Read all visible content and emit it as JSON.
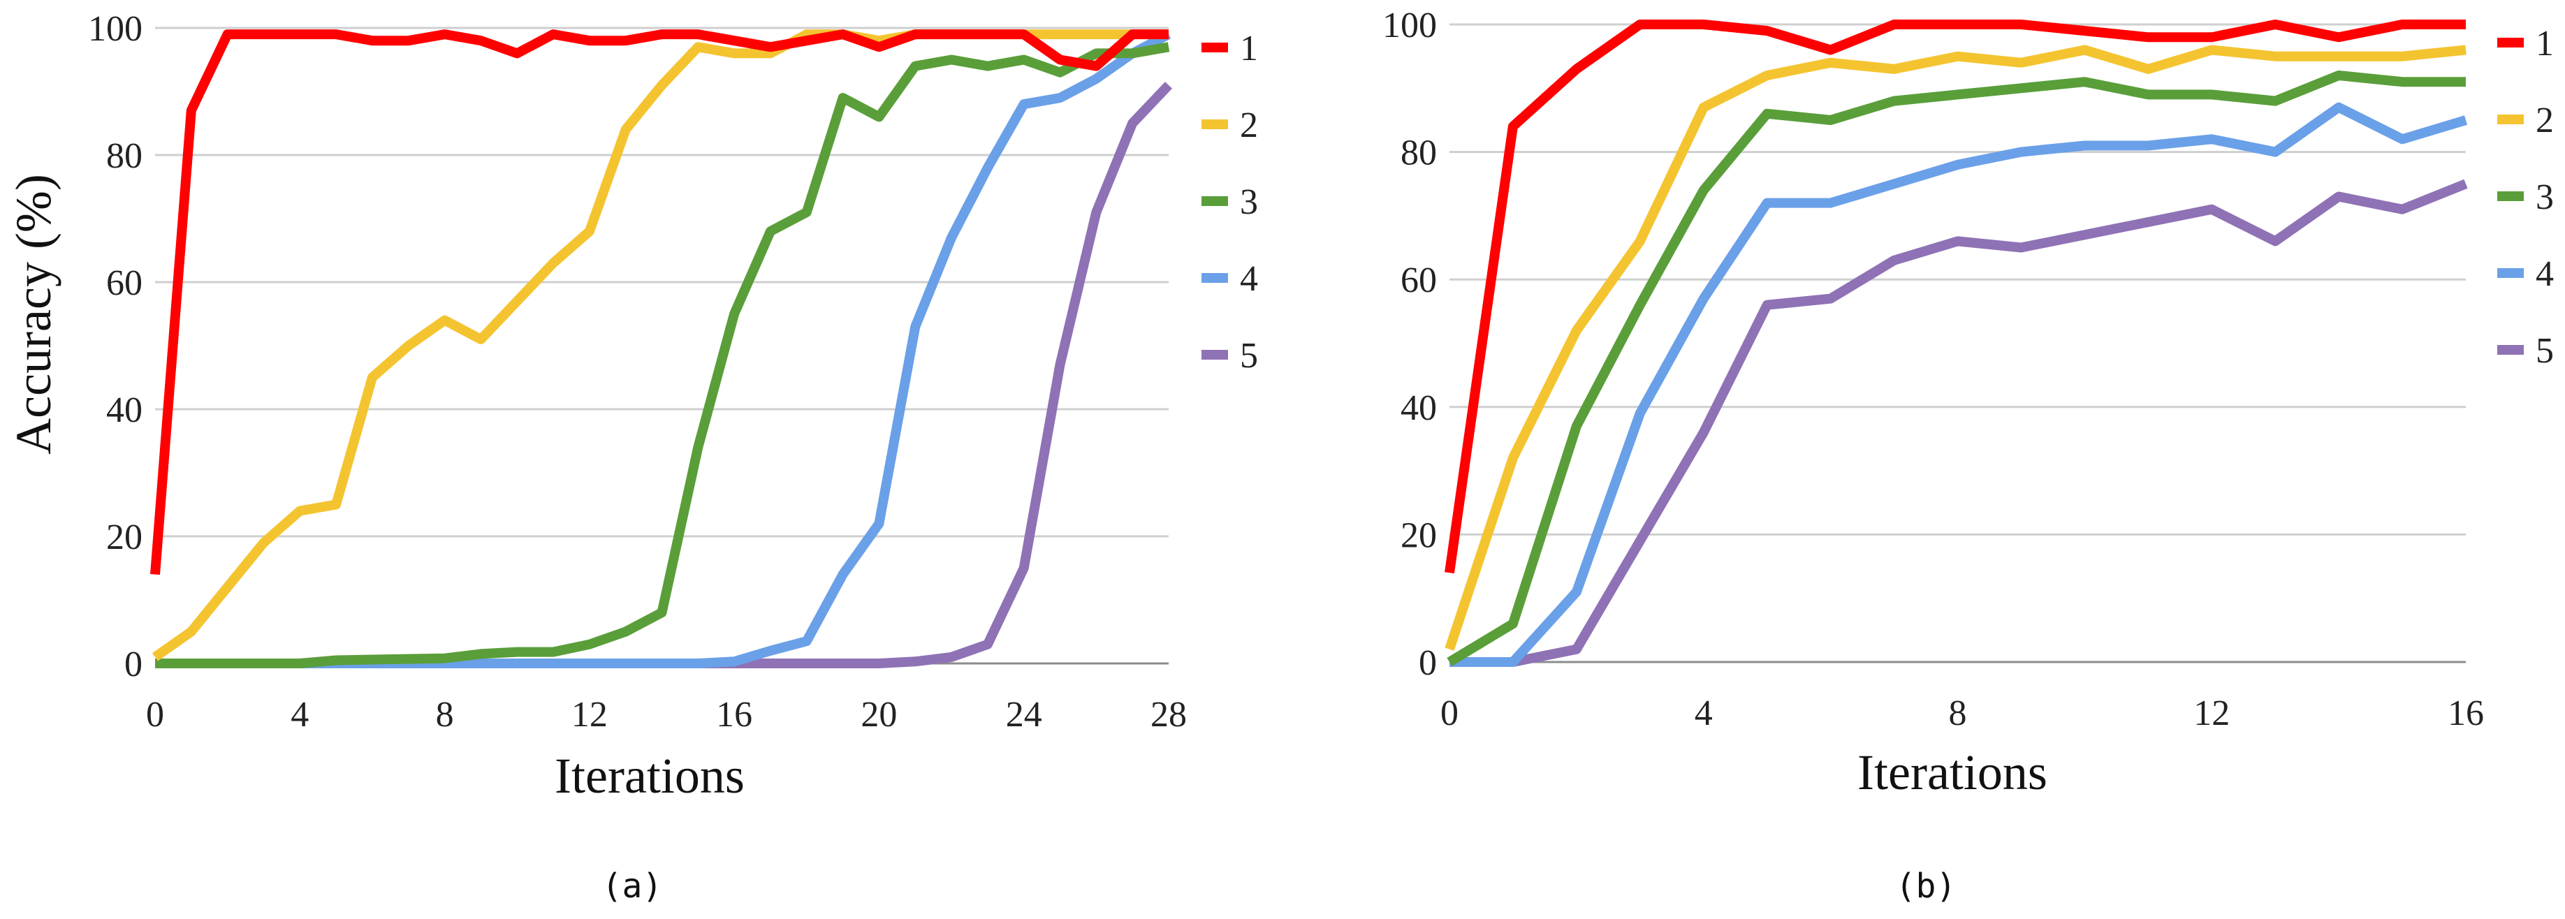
{
  "chart_data": [
    {
      "type": "line",
      "caption": "(a)",
      "xlabel": "Iterations",
      "ylabel": "Accuracy (%)",
      "xlim": [
        0,
        28
      ],
      "ylim": [
        0,
        100
      ],
      "xticks": [
        0,
        4,
        8,
        12,
        16,
        20,
        24,
        28
      ],
      "yticks": [
        0,
        20,
        40,
        60,
        80,
        100
      ],
      "grid": true,
      "legend_position": "right",
      "series": [
        {
          "name": "1",
          "color": "#ff0000",
          "x": [
            0,
            1,
            2,
            3,
            4,
            5,
            6,
            7,
            8,
            9,
            10,
            11,
            12,
            13,
            14,
            15,
            16,
            17,
            18,
            19,
            20,
            21,
            22,
            23,
            24,
            25,
            26,
            27,
            28
          ],
          "values": [
            14,
            87,
            99,
            99,
            99,
            99,
            98,
            98,
            99,
            98,
            96,
            99,
            98,
            98,
            99,
            99,
            98,
            97,
            98,
            99,
            97,
            99,
            99,
            99,
            99,
            95,
            94,
            99,
            99
          ]
        },
        {
          "name": "2",
          "color": "#f4c430",
          "x": [
            0,
            1,
            2,
            3,
            4,
            5,
            6,
            7,
            8,
            9,
            10,
            11,
            12,
            13,
            14,
            15,
            16,
            17,
            18,
            19,
            20,
            21,
            22,
            23,
            24,
            25,
            26,
            27,
            28
          ],
          "values": [
            1,
            5,
            12,
            19,
            24,
            25,
            45,
            50,
            54,
            51,
            57,
            63,
            68,
            84,
            91,
            97,
            96,
            96,
            99,
            99,
            98,
            99,
            99,
            99,
            99,
            99,
            99,
            99,
            99
          ]
        },
        {
          "name": "3",
          "color": "#5a9e3a",
          "x": [
            0,
            1,
            2,
            3,
            4,
            5,
            6,
            7,
            8,
            9,
            10,
            11,
            12,
            13,
            14,
            15,
            16,
            17,
            18,
            19,
            20,
            21,
            22,
            23,
            24,
            25,
            26,
            27,
            28
          ],
          "values": [
            0,
            0,
            0,
            0,
            0,
            0.5,
            0.6,
            0.7,
            0.8,
            1.5,
            1.8,
            1.8,
            3,
            5,
            8,
            34,
            55,
            68,
            71,
            89,
            86,
            94,
            95,
            94,
            95,
            93,
            96,
            96,
            97
          ]
        },
        {
          "name": "4",
          "color": "#6aa0e8",
          "x": [
            0,
            1,
            2,
            3,
            4,
            5,
            6,
            7,
            8,
            9,
            10,
            11,
            12,
            13,
            14,
            15,
            16,
            17,
            18,
            19,
            20,
            21,
            22,
            23,
            24,
            25,
            26,
            27,
            28
          ],
          "values": [
            0,
            0,
            0,
            0,
            0,
            0,
            0,
            0,
            0,
            0,
            0,
            0,
            0,
            0,
            0,
            0,
            0.3,
            2,
            3.5,
            14,
            22,
            53,
            67,
            78,
            88,
            89,
            92,
            96,
            99
          ]
        },
        {
          "name": "5",
          "color": "#8e72b5",
          "x": [
            0,
            1,
            2,
            3,
            4,
            5,
            6,
            7,
            8,
            9,
            10,
            11,
            12,
            13,
            14,
            15,
            16,
            17,
            18,
            19,
            20,
            21,
            22,
            23,
            24,
            25,
            26,
            27,
            28
          ],
          "values": [
            0,
            0,
            0,
            0,
            0,
            0,
            0,
            0,
            0,
            0,
            0,
            0,
            0,
            0,
            0,
            0,
            0,
            0,
            0,
            0,
            0,
            0.3,
            1,
            3,
            15,
            47,
            71,
            85,
            91
          ]
        }
      ]
    },
    {
      "type": "line",
      "caption": "(b)",
      "xlabel": "Iterations",
      "ylabel": "",
      "xlim": [
        0,
        16
      ],
      "ylim": [
        0,
        100
      ],
      "xticks": [
        0,
        4,
        8,
        12,
        16
      ],
      "yticks": [
        0,
        20,
        40,
        60,
        80,
        100
      ],
      "grid": true,
      "legend_position": "right",
      "series": [
        {
          "name": "1",
          "color": "#ff0000",
          "x": [
            0,
            1,
            2,
            3,
            4,
            5,
            6,
            7,
            8,
            9,
            10,
            11,
            12,
            13,
            14,
            15,
            16
          ],
          "values": [
            14,
            84,
            93,
            100,
            100,
            99,
            96,
            100,
            100,
            100,
            99,
            98,
            98,
            100,
            98,
            100,
            100
          ]
        },
        {
          "name": "2",
          "color": "#f4c430",
          "x": [
            0,
            1,
            2,
            3,
            4,
            5,
            6,
            7,
            8,
            9,
            10,
            11,
            12,
            13,
            14,
            15,
            16
          ],
          "values": [
            2,
            32,
            52,
            66,
            87,
            92,
            94,
            93,
            95,
            94,
            96,
            93,
            96,
            95,
            95,
            95,
            96
          ]
        },
        {
          "name": "3",
          "color": "#5a9e3a",
          "x": [
            0,
            1,
            2,
            3,
            4,
            5,
            6,
            7,
            8,
            9,
            10,
            11,
            12,
            13,
            14,
            15,
            16
          ],
          "values": [
            0,
            6,
            37,
            56,
            74,
            86,
            85,
            88,
            89,
            90,
            91,
            89,
            89,
            88,
            92,
            91,
            91
          ]
        },
        {
          "name": "4",
          "color": "#6aa0e8",
          "x": [
            0,
            1,
            2,
            3,
            4,
            5,
            6,
            7,
            8,
            9,
            10,
            11,
            12,
            13,
            14,
            15,
            16
          ],
          "values": [
            0,
            0,
            11,
            39,
            57,
            72,
            72,
            75,
            78,
            80,
            81,
            81,
            82,
            80,
            87,
            82,
            85
          ]
        },
        {
          "name": "5",
          "color": "#8e72b5",
          "x": [
            0,
            1,
            2,
            3,
            4,
            5,
            6,
            7,
            8,
            9,
            10,
            11,
            12,
            13,
            14,
            15,
            16
          ],
          "values": [
            0,
            0,
            2,
            19,
            36,
            56,
            57,
            63,
            66,
            65,
            67,
            69,
            71,
            66,
            73,
            71,
            75
          ]
        }
      ]
    }
  ]
}
